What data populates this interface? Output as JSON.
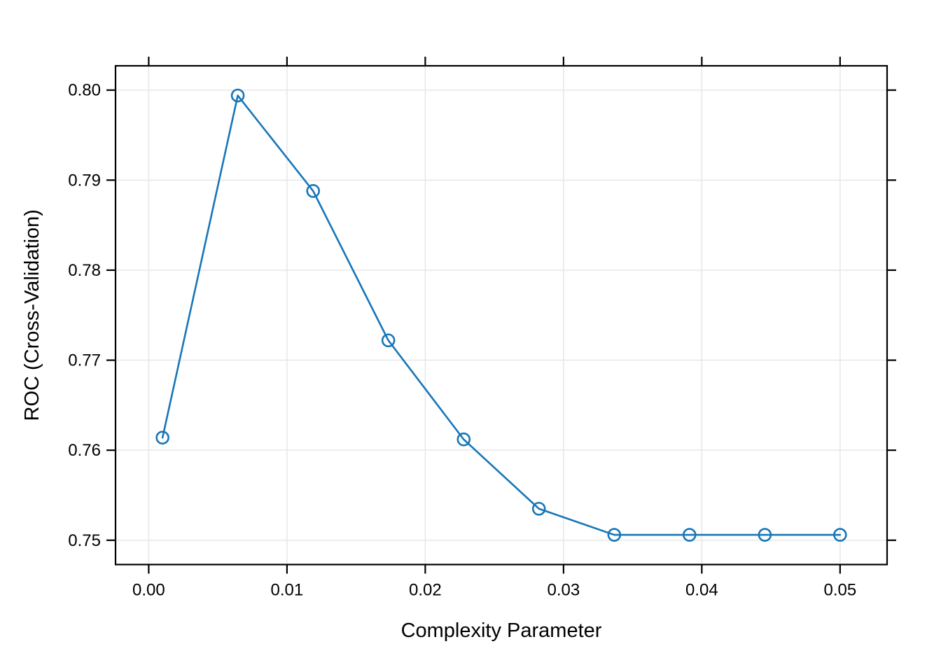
{
  "figure": {
    "background": "#ffffff"
  },
  "chart_data": {
    "type": "line",
    "title": "",
    "xlabel": "Complexity Parameter",
    "ylabel": "ROC (Cross-Validation)",
    "x": [
      0.001,
      0.00644,
      0.01189,
      0.01733,
      0.02278,
      0.02822,
      0.03367,
      0.03911,
      0.04456,
      0.05
    ],
    "y": [
      0.7614,
      0.7994,
      0.7888,
      0.7722,
      0.7612,
      0.7535,
      0.7506,
      0.7506,
      0.7506,
      0.7506
    ],
    "series_name": "ROC (Cross-Validation)",
    "x_tick_values": [
      0.0,
      0.01,
      0.02,
      0.03,
      0.04,
      0.05
    ],
    "x_tick_labels": [
      "0.00",
      "0.01",
      "0.02",
      "0.03",
      "0.04",
      "0.05"
    ],
    "y_tick_values": [
      0.75,
      0.76,
      0.77,
      0.78,
      0.79,
      0.8
    ],
    "y_tick_labels": [
      "0.75",
      "0.76",
      "0.77",
      "0.78",
      "0.79",
      "0.80"
    ],
    "xlim": [
      -0.0024,
      0.0534
    ],
    "ylim": [
      0.7473,
      0.8027
    ],
    "grid": true,
    "legend": "none",
    "marker": "open-circle",
    "colors": {
      "line": "#1776b9",
      "marker": "#1776b9",
      "grid": "#e7e7e7",
      "axis": "#000000",
      "text": "#000000",
      "background": "#ffffff"
    }
  }
}
